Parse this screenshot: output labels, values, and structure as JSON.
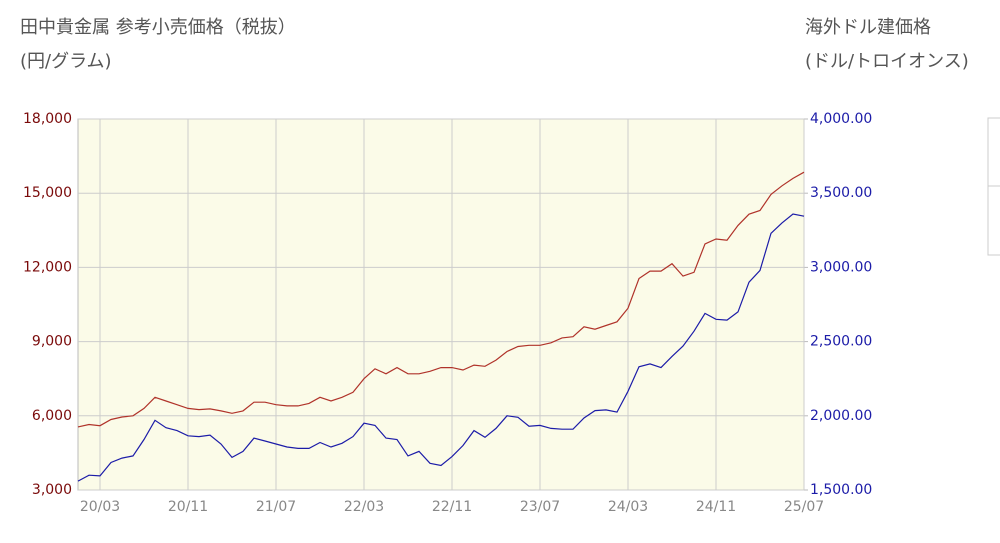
{
  "chart_data": {
    "type": "line",
    "title": "田中貴金属 参考小売価格（税抜）",
    "subtitle": "(円/グラム)",
    "y2_title": "海外ドル建価格",
    "y2_subtitle": "(ドル/トロイオンス)",
    "categories": [
      null,
      null,
      "20/03",
      null,
      null,
      null,
      null,
      null,
      null,
      null,
      "20/11",
      null,
      null,
      null,
      null,
      null,
      null,
      null,
      "21/07",
      null,
      null,
      null,
      null,
      null,
      null,
      null,
      "22/03",
      null,
      null,
      null,
      null,
      null,
      null,
      null,
      "22/11",
      null,
      null,
      null,
      null,
      null,
      null,
      null,
      "23/07",
      null,
      null,
      null,
      null,
      null,
      null,
      null,
      "24/03",
      null,
      null,
      null,
      null,
      null,
      null,
      null,
      "24/11",
      null,
      null,
      null,
      null,
      null,
      null,
      null,
      "25/07"
    ],
    "series": [
      {
        "color": "#b0332a",
        "axis": "y",
        "values": [
          5550,
          5650,
          5600,
          5850,
          5950,
          6000,
          6300,
          6750,
          6600,
          6450,
          6300,
          6250,
          6280,
          6200,
          6100,
          6200,
          6550,
          6550,
          6450,
          6400,
          6400,
          6500,
          6750,
          6600,
          6750,
          6950,
          7500,
          7900,
          7700,
          7950,
          7700,
          7700,
          7800,
          7950,
          7950,
          7850,
          8050,
          8000,
          8250,
          8600,
          8800,
          8850,
          8850,
          8950,
          9150,
          9200,
          9600,
          9500,
          9650,
          9800,
          10350,
          11550,
          11850,
          11850,
          12150,
          11650,
          11800,
          12950,
          13150,
          13100,
          13700,
          14150,
          14300,
          14950,
          15300,
          15600,
          15850
        ]
      },
      {
        "color": "#1c1ca8",
        "axis": "y2",
        "values": [
          1560,
          1600,
          1595,
          1685,
          1715,
          1730,
          1840,
          1970,
          1920,
          1900,
          1865,
          1860,
          1870,
          1810,
          1720,
          1760,
          1850,
          1830,
          1810,
          1790,
          1780,
          1780,
          1820,
          1790,
          1815,
          1860,
          1950,
          1935,
          1850,
          1840,
          1730,
          1760,
          1680,
          1665,
          1725,
          1800,
          1900,
          1855,
          1915,
          2000,
          1990,
          1930,
          1935,
          1915,
          1910,
          1910,
          1985,
          2035,
          2040,
          2025,
          2165,
          2330,
          2350,
          2325,
          2400,
          2470,
          2570,
          2690,
          2650,
          2645,
          2700,
          2900,
          2980,
          3230,
          3300,
          3360,
          3345
        ]
      }
    ],
    "ylim": [
      3000,
      18000
    ],
    "yticks": [
      {
        "value": 3000,
        "label": "3,000"
      },
      {
        "value": 6000,
        "label": "6,000"
      },
      {
        "value": 9000,
        "label": "9,000"
      },
      {
        "value": 12000,
        "label": "12,000"
      },
      {
        "value": 15000,
        "label": "15,000"
      },
      {
        "value": 18000,
        "label": "18,000"
      }
    ],
    "y2lim": [
      1500,
      4000
    ],
    "y2ticks": [
      {
        "value": 1500,
        "label": "1,500.00"
      },
      {
        "value": 2000,
        "label": "2,000.00"
      },
      {
        "value": 2500,
        "label": "2,500.00"
      },
      {
        "value": 3000,
        "label": "3,000.00"
      },
      {
        "value": 3500,
        "label": "3,500.00"
      },
      {
        "value": 4000,
        "label": "4,000.00"
      }
    ],
    "ytick_color": "#7a0a0a",
    "y2tick_color": "#1c1ca8",
    "background": "#fbfbe8",
    "grid": true
  }
}
